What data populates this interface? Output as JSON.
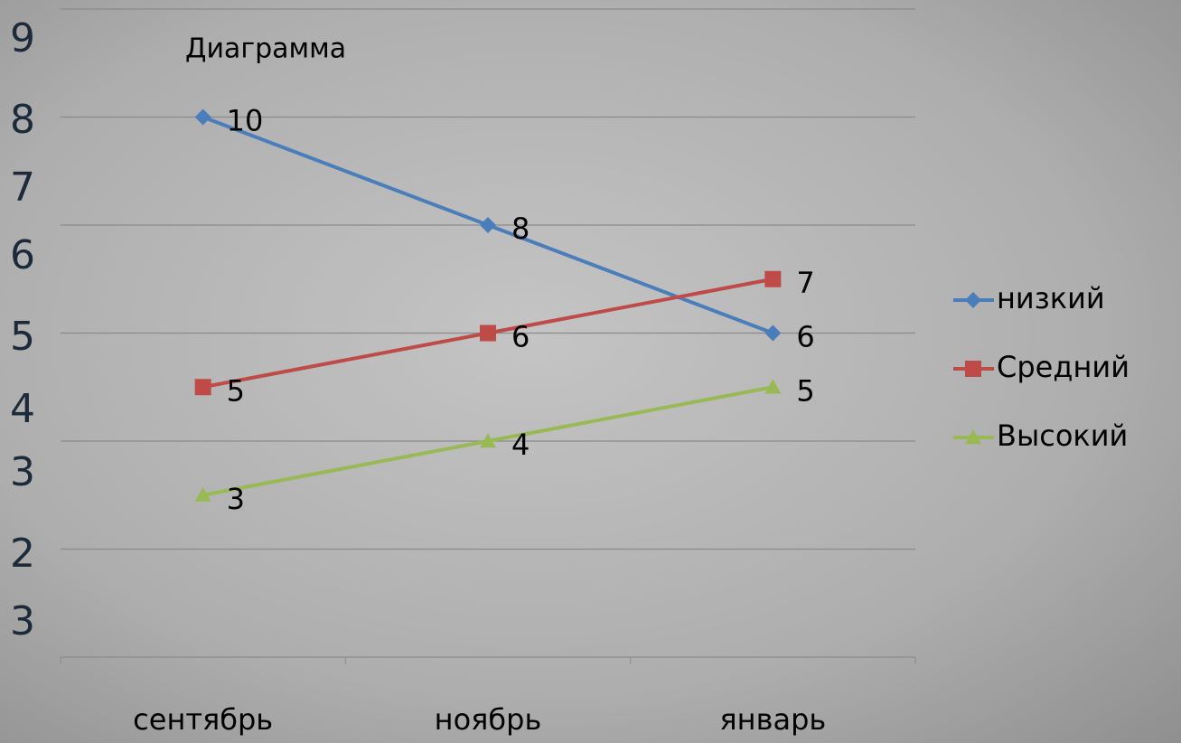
{
  "chart_data": {
    "type": "line",
    "title": "Диаграмма",
    "categories": [
      "сентябрь",
      "ноябрь",
      "январь"
    ],
    "series": [
      {
        "name": "низкий",
        "color": "#4a7ebb",
        "marker": "diamond",
        "values": [
          10,
          8,
          6
        ]
      },
      {
        "name": "Средний",
        "color": "#be4b48",
        "marker": "square",
        "values": [
          5,
          6,
          7
        ]
      },
      {
        "name": "Высокий",
        "color": "#98b954",
        "marker": "triangle",
        "values": [
          3,
          4,
          5
        ]
      }
    ],
    "ylim": [
      0,
      12
    ],
    "yticks": [
      0,
      2,
      4,
      6,
      8,
      10,
      12
    ],
    "grid": true,
    "side_labels": [
      "9",
      "8",
      "7",
      "6",
      "5",
      "4",
      "3",
      "2",
      "3"
    ],
    "legend": "right"
  }
}
